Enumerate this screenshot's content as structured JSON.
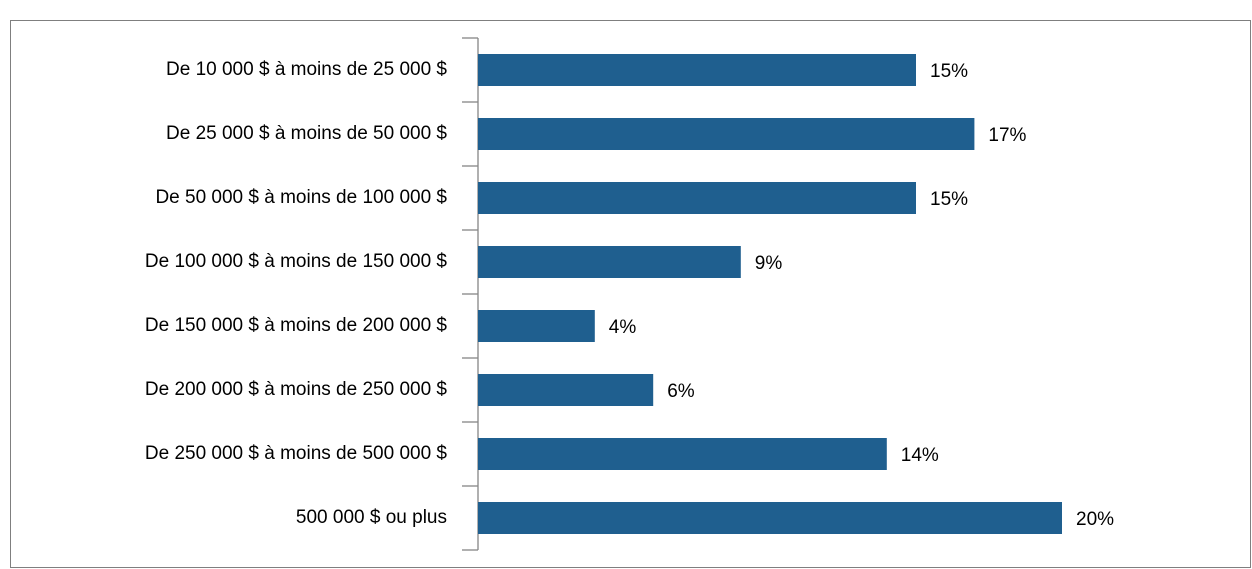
{
  "chart_data": {
    "type": "hbar",
    "categories": [
      "De 10 000 $ à moins de 25 000 $",
      "De 25 000 $ à moins de 50 000 $",
      "De 50 000 $ à moins de 100 000 $",
      "De 100 000 $ à moins de 150 000 $",
      "De 150 000 $ à moins de 200 000 $",
      "De 200 000 $ à moins de 250 000 $",
      "De 250 000 $ à moins de 500 000 $",
      "500 000 $ ou plus"
    ],
    "values": [
      15,
      17,
      15,
      9,
      4,
      6,
      14,
      20
    ],
    "value_labels": [
      "15%",
      "17%",
      "15%",
      "9%",
      "4%",
      "6%",
      "14%",
      "20%"
    ],
    "color": "#1f5f8f"
  }
}
